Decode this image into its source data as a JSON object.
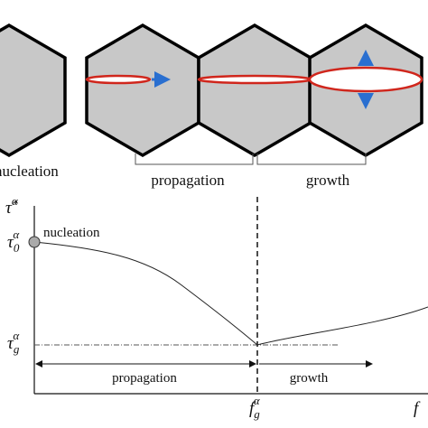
{
  "stages": {
    "nucleation": "nucleation",
    "propagation": "propagation",
    "growth": "growth"
  },
  "plot": {
    "y_axis_label": {
      "symbol": "τ̂",
      "superscript": "α"
    },
    "y_start_label": {
      "symbol": "τ",
      "subscript": "0",
      "superscript": "α"
    },
    "y_growth_label": {
      "symbol": "τ",
      "subscript": "g",
      "superscript": "α"
    },
    "x_growth_label": {
      "symbol": "f",
      "subscript": "g",
      "superscript": "α"
    },
    "x_axis_label": {
      "symbol": "f"
    },
    "nucleation": "nucleation",
    "propagation": "propagation",
    "growth": "growth"
  }
}
